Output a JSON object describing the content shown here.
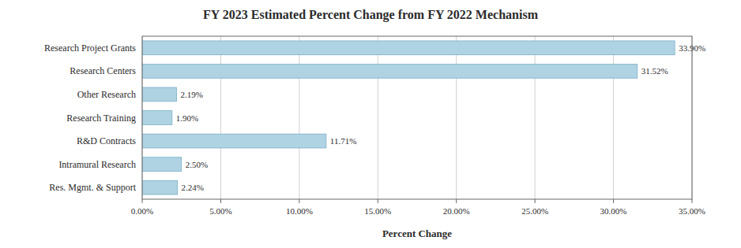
{
  "chart_data": {
    "type": "bar",
    "orientation": "horizontal",
    "title": "FY 2023 Estimated Percent Change from FY 2022 Mechanism",
    "xlabel": "Percent Change",
    "categories": [
      "Res. Mgmt. & Support",
      "Intramural Research",
      "R&D Contracts",
      "Research Training",
      "Other Research",
      "Research Centers",
      "Research Project Grants"
    ],
    "values": [
      2.24,
      2.5,
      11.71,
      1.9,
      2.19,
      31.52,
      33.9
    ],
    "value_labels": [
      "2.24%",
      "2.50%",
      "11.71%",
      "1.90%",
      "2.19%",
      "31.52%",
      "33.90%"
    ],
    "data_labels": true,
    "color": "#afd3e2",
    "xlim": [
      0,
      35
    ],
    "xticks": [
      {
        "value": 0,
        "label": "0.00%"
      },
      {
        "value": 5,
        "label": "5.00%"
      },
      {
        "value": 10,
        "label": "10.00%"
      },
      {
        "value": 15,
        "label": "15.00%"
      },
      {
        "value": 20,
        "label": "20.00%"
      },
      {
        "value": 25,
        "label": "25.00%"
      },
      {
        "value": 30,
        "label": "30.00%"
      },
      {
        "value": 35,
        "label": "35.00%"
      }
    ],
    "grid": true
  }
}
